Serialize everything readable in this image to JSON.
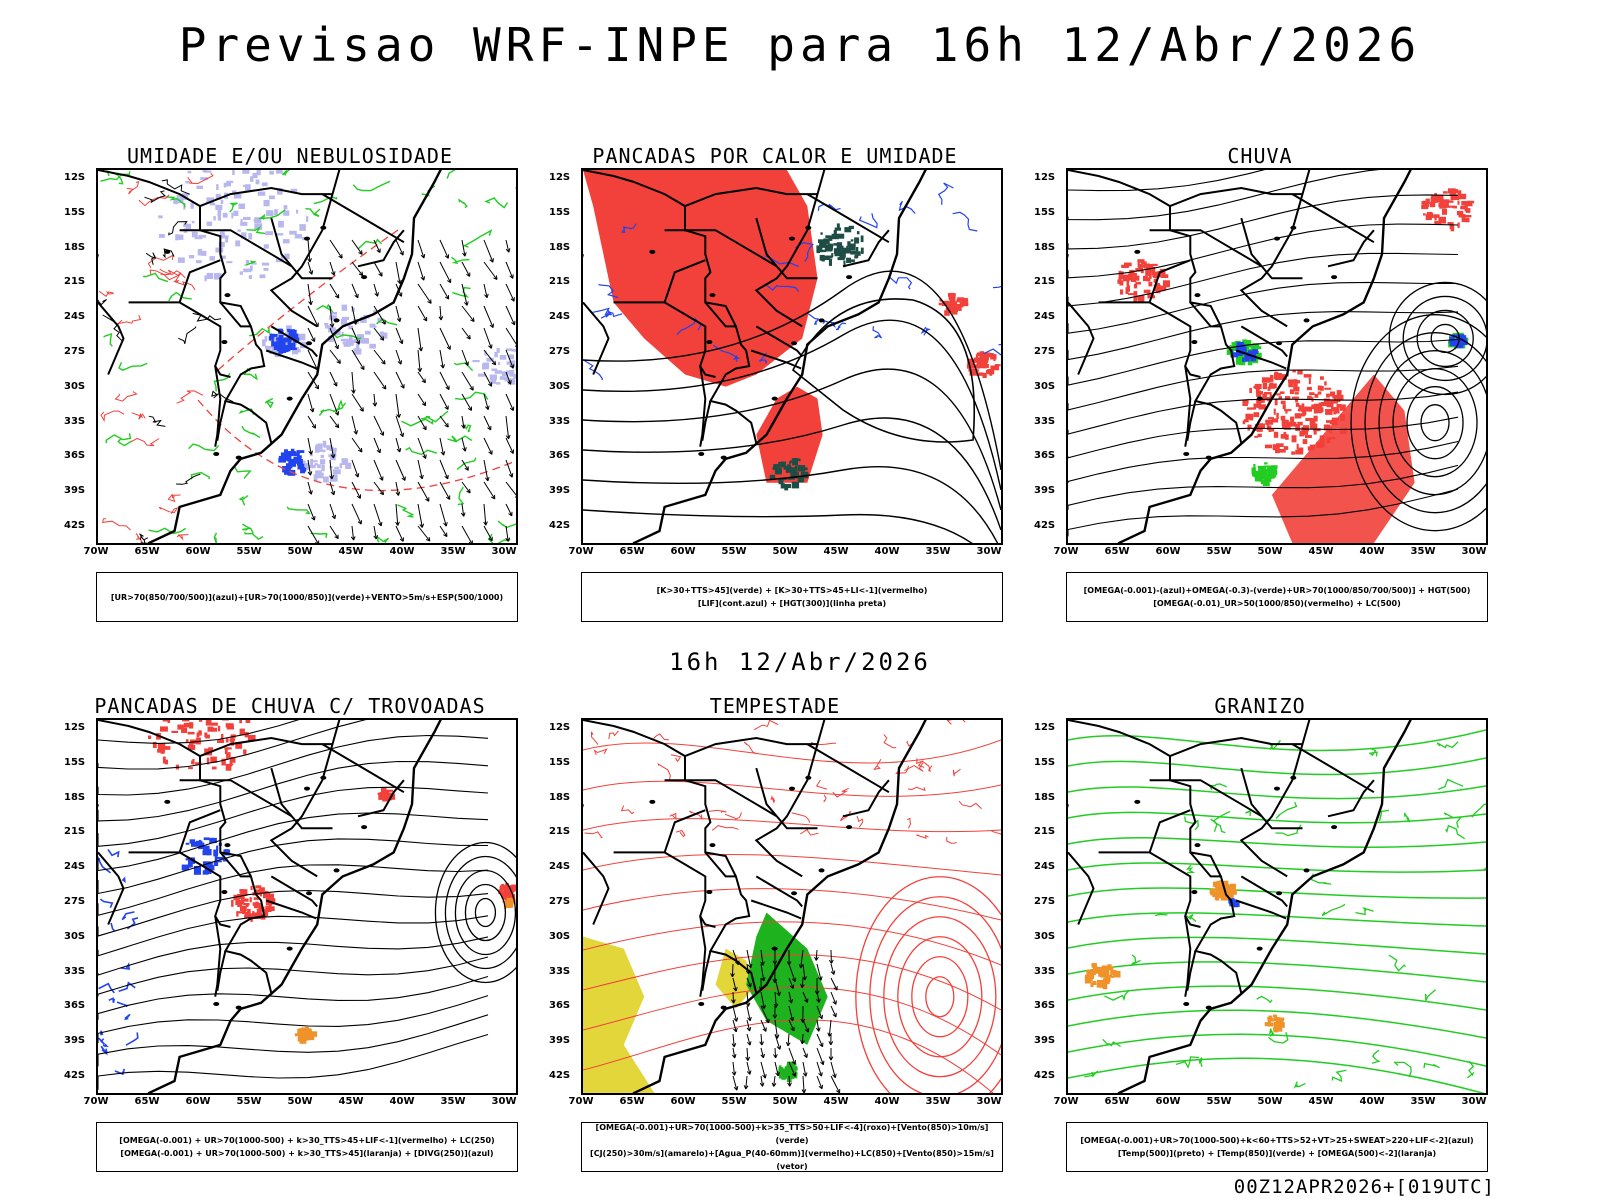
{
  "main_title": "Previsao WRF-INPE  para 16h 12/Abr/2026",
  "mid_title": "16h 12/Abr/2026",
  "footer": "00Z12APR2026+[019UTC]",
  "lat_labels": [
    "12S",
    "15S",
    "18S",
    "21S",
    "24S",
    "27S",
    "30S",
    "33S",
    "36S",
    "39S",
    "42S"
  ],
  "lon_labels": [
    "70W",
    "65W",
    "60W",
    "55W",
    "50W",
    "45W",
    "40W",
    "35W",
    "30W"
  ],
  "colors": {
    "red": "#f2403a",
    "green": "#22cc22",
    "blue": "#2244ee",
    "lavender": "#b8b8ee",
    "darkgreen": "#1d4d45",
    "yellow": "#e3d63a",
    "orange": "#f0922a",
    "black": "#000000"
  },
  "panels": [
    {
      "title": "UMIDADE E/OU NEBULOSIDADE",
      "legend": [
        "[UR>70(850/700/500)](azul)+[UR>70(1000/850)](verde)+VENTO>5m/s+ESP(500/1000)"
      ]
    },
    {
      "title": "PANCADAS POR CALOR E UMIDADE",
      "legend": [
        "[K>30+TTS>45](verde) + [K>30+TTS>45+LI<-1](vermelho)",
        "[LIF](cont.azul) + [HGT(300)](linha preta)"
      ]
    },
    {
      "title": "CHUVA",
      "legend": [
        "[OMEGA(-0.001)-(azul)+OMEGA(-0.3)-(verde)+UR>70(1000/850/700/500)] + HGT(500)",
        "[OMEGA(-0.01)_UR>50(1000/850)(vermelho) + LC(500)"
      ]
    },
    {
      "title": "PANCADAS DE CHUVA C/ TROVOADAS",
      "legend": [
        "[OMEGA(-0.001) + UR>70(1000-500) + k>30_TTS>45+LIF<-1](vermelho) + LC(250)",
        "[OMEGA(-0.001) + UR>70(1000-500) + k>30_TTS>45](laranja) + [DIVG(250)](azul)"
      ]
    },
    {
      "title": "TEMPESTADE",
      "legend": [
        "[OMEGA(-0.001)+UR>70(1000-500)+k>35_TTS>50+LIF<-4](roxo)+[Vento(850)>10m/s](verde)",
        "[CJ(250)>30m/s](amarelo)+[Agua_P(40-60mm)](vermelho)+LC(850)+[Vento(850)>15m/s](vetor)"
      ]
    },
    {
      "title": "GRANIZO",
      "legend": [
        "[OMEGA(-0.001)+UR>70(1000-500)+k<60+TTS>52+VT>25+SWEAT>220+LIF<-2](azul)",
        "[Temp(500)](preto) + [Temp(850)](verde) + [OMEGA(500)<-2](laranja)"
      ]
    }
  ]
}
